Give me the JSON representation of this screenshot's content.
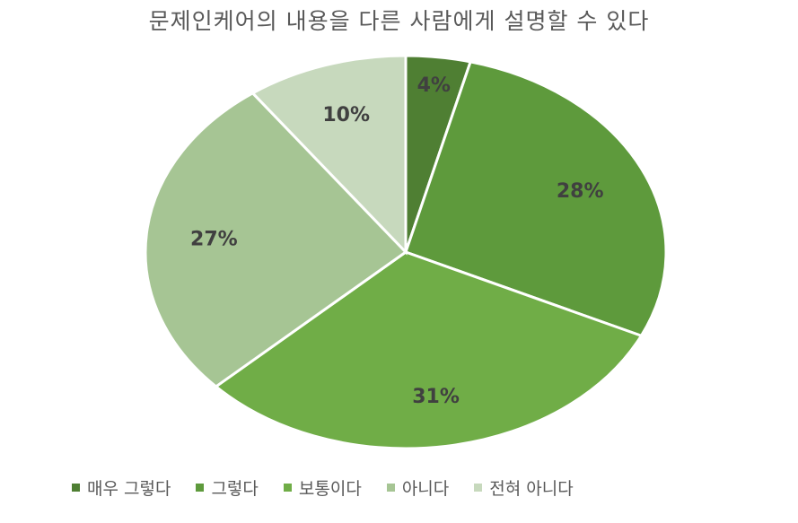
{
  "chart_data": {
    "type": "pie",
    "title": "문제인케어의 내용을 다른 사람에게 설명할 수 있다",
    "categories": [
      "매우 그렇다",
      "그렇다",
      "보통이다",
      "아니다",
      "전혀 아니다"
    ],
    "values": [
      4,
      28,
      31,
      27,
      10
    ],
    "labels": [
      "4%",
      "28%",
      "31%",
      "27%",
      "10%"
    ],
    "colors": [
      "#4f7f33",
      "#5e9a3c",
      "#70ad47",
      "#a6c594",
      "#c7d9bd"
    ],
    "legend_position": "bottom"
  }
}
